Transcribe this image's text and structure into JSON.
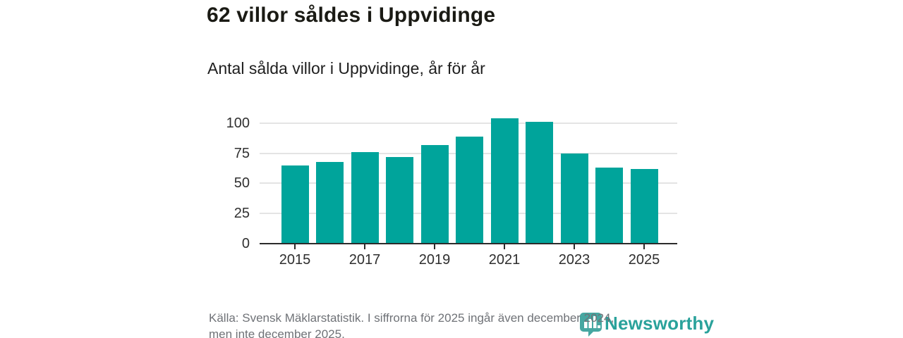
{
  "header": {
    "title": "62 villor såldes i Uppvidinge"
  },
  "chart_data": {
    "type": "bar",
    "title": "Antal sålda villor i Uppvidinge, år för år",
    "categories": [
      "2015",
      "2016",
      "2017",
      "2018",
      "2019",
      "2020",
      "2021",
      "2022",
      "2023",
      "2024",
      "2025"
    ],
    "values": [
      65,
      68,
      76,
      72,
      82,
      89,
      104,
      101,
      75,
      63,
      62
    ],
    "x_tick_labels": [
      "2015",
      "2017",
      "2019",
      "2021",
      "2023",
      "2025"
    ],
    "y_ticks": [
      0,
      25,
      50,
      75,
      100
    ],
    "ylim": [
      0,
      110
    ],
    "xlabel": "",
    "ylabel": "",
    "grid": true,
    "legend": false,
    "bar_color": "#00a49b",
    "axis_color": "#2b2b2b",
    "gridline_color": "#e4e4e4"
  },
  "footer": {
    "source_line1": "Källa: Svensk Mäklarstatistik. I siffrorna för 2025 ingår även december 2024,",
    "source_line2": "men inte december 2025."
  },
  "branding": {
    "logo_text": "Newsworthy",
    "logo_icon": "bar-chart-bubble-icon",
    "logo_icon_color": "#46a7a1",
    "logo_text_color": "#2aa29b"
  }
}
